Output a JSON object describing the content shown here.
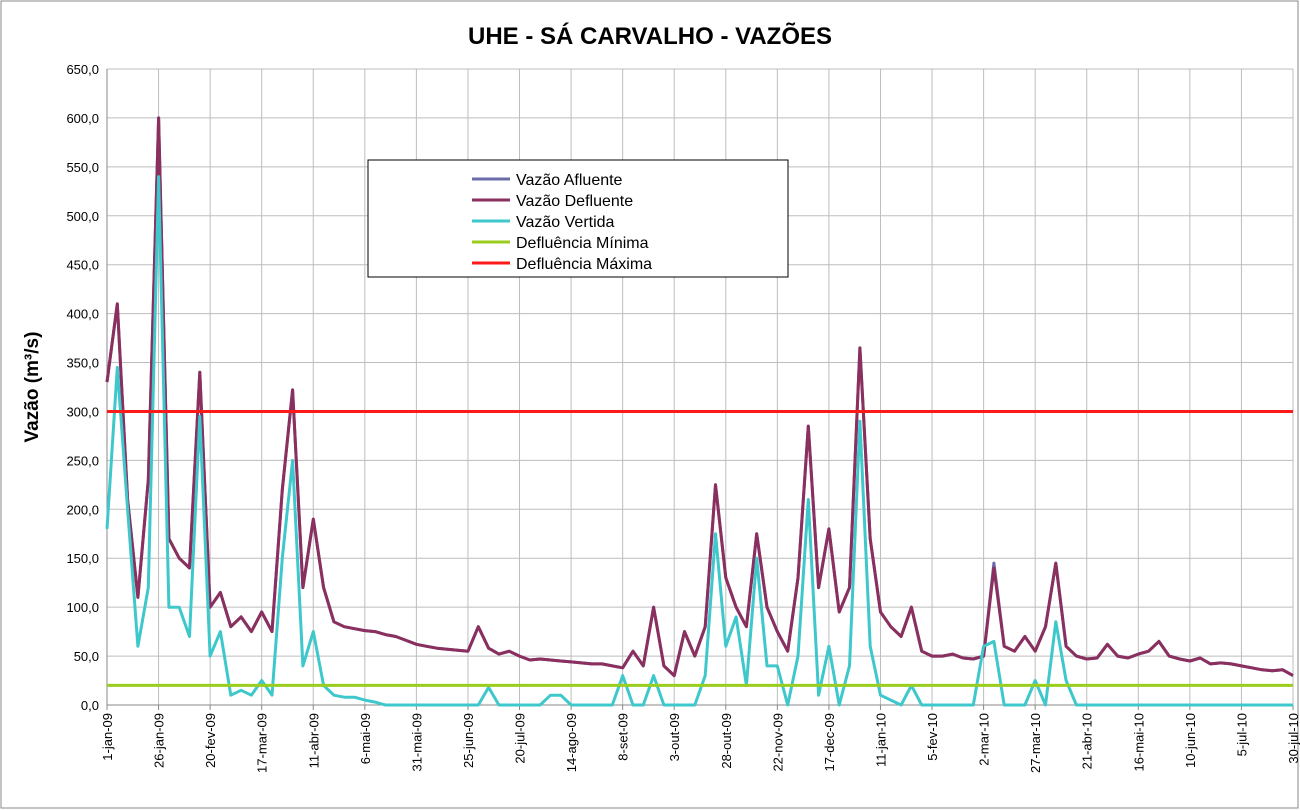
{
  "chart_data": {
    "type": "line",
    "title": "UHE - SÁ CARVALHO - VAZÕES",
    "y_label": "Vazão (m³/s)",
    "categories": [
      "1-jan-09",
      null,
      null,
      null,
      null,
      "26-jan-09",
      null,
      null,
      null,
      null,
      "20-fev-09",
      null,
      null,
      null,
      null,
      "17-mar-09",
      null,
      null,
      null,
      null,
      "11-abr-09",
      null,
      null,
      null,
      null,
      "6-mai-09",
      null,
      null,
      null,
      null,
      "31-mai-09",
      null,
      null,
      null,
      null,
      "25-jun-09",
      null,
      null,
      null,
      null,
      "20-jul-09",
      null,
      null,
      null,
      null,
      "14-ago-09",
      null,
      null,
      null,
      null,
      "8-set-09",
      null,
      null,
      null,
      null,
      "3-out-09",
      null,
      null,
      null,
      null,
      "28-out-09",
      null,
      null,
      null,
      null,
      "22-nov-09",
      null,
      null,
      null,
      null,
      "17-dec-09",
      null,
      null,
      null,
      null,
      "11-jan-10",
      null,
      null,
      null,
      null,
      "5-fev-10",
      null,
      null,
      null,
      null,
      "2-mar-10",
      null,
      null,
      null,
      null,
      "27-mar-10",
      null,
      null,
      null,
      null,
      "21-abr-10",
      null,
      null,
      null,
      null,
      "16-mai-10",
      null,
      null,
      null,
      null,
      "10-jun-10",
      null,
      null,
      null,
      null,
      "5-jul-10",
      null,
      null,
      null,
      null,
      "30-jul-10"
    ],
    "series": [
      {
        "name": "Vazão Afluente",
        "color": "#6b6baa",
        "values": [
          330,
          410,
          210,
          110,
          230,
          600,
          170,
          150,
          140,
          340,
          100,
          115,
          80,
          90,
          75,
          95,
          75,
          220,
          322,
          120,
          190,
          120,
          85,
          80,
          78,
          76,
          75,
          72,
          70,
          66,
          62,
          60,
          58,
          57,
          56,
          55,
          80,
          58,
          52,
          55,
          50,
          46,
          47,
          46,
          45,
          44,
          43,
          42,
          42,
          40,
          38,
          55,
          40,
          100,
          40,
          30,
          75,
          50,
          80,
          225,
          130,
          100,
          80,
          175,
          100,
          75,
          55,
          130,
          285,
          120,
          180,
          95,
          120,
          365,
          170,
          95,
          80,
          70,
          100,
          55,
          50,
          50,
          52,
          48,
          47,
          50,
          145,
          60,
          55,
          70,
          55,
          80,
          145,
          60,
          50,
          47,
          48,
          62,
          50,
          48,
          52,
          55,
          65,
          50,
          47,
          45,
          48,
          42,
          43,
          42,
          40,
          38,
          36,
          35,
          36,
          30
        ]
      },
      {
        "name": "Vazão Defluente",
        "color": "#8b2f5e",
        "values": [
          330,
          410,
          210,
          110,
          230,
          600,
          170,
          150,
          140,
          340,
          100,
          115,
          80,
          90,
          75,
          95,
          75,
          220,
          322,
          120,
          190,
          120,
          85,
          80,
          78,
          76,
          75,
          72,
          70,
          66,
          62,
          60,
          58,
          57,
          56,
          55,
          80,
          58,
          52,
          55,
          50,
          46,
          47,
          46,
          45,
          44,
          43,
          42,
          42,
          40,
          38,
          55,
          40,
          100,
          40,
          30,
          75,
          50,
          80,
          225,
          130,
          100,
          80,
          175,
          100,
          75,
          55,
          130,
          285,
          120,
          180,
          95,
          120,
          365,
          170,
          95,
          80,
          70,
          100,
          55,
          50,
          50,
          52,
          48,
          47,
          50,
          140,
          60,
          55,
          70,
          55,
          80,
          145,
          60,
          50,
          47,
          48,
          62,
          50,
          48,
          52,
          55,
          65,
          50,
          47,
          45,
          48,
          42,
          43,
          42,
          40,
          38,
          36,
          35,
          36,
          30
        ]
      },
      {
        "name": "Vazão Vertida",
        "color": "#3ec8cc",
        "values": [
          180,
          345,
          200,
          60,
          120,
          540,
          100,
          100,
          70,
          295,
          50,
          75,
          10,
          15,
          10,
          25,
          10,
          150,
          250,
          40,
          75,
          20,
          10,
          8,
          8,
          5,
          3,
          0,
          0,
          0,
          0,
          0,
          0,
          0,
          0,
          0,
          0,
          18,
          0,
          0,
          0,
          0,
          0,
          10,
          10,
          0,
          0,
          0,
          0,
          0,
          30,
          0,
          0,
          30,
          0,
          0,
          0,
          0,
          30,
          175,
          60,
          90,
          20,
          150,
          40,
          40,
          0,
          50,
          210,
          10,
          60,
          0,
          40,
          290,
          60,
          10,
          5,
          0,
          20,
          0,
          0,
          0,
          0,
          0,
          0,
          60,
          65,
          0,
          0,
          0,
          25,
          0,
          85,
          25,
          0,
          0,
          0,
          0,
          0,
          0,
          0,
          0,
          0,
          0,
          0,
          0,
          0,
          0,
          0,
          0,
          0,
          0,
          0,
          0,
          0,
          0
        ]
      }
    ],
    "reference_lines": [
      {
        "name": "Defluência Mínima",
        "color": "#9acd1e",
        "value": 20
      },
      {
        "name": "Defluência Máxima",
        "color": "#ff1a1a",
        "value": 300
      }
    ],
    "ylim": [
      0,
      650
    ],
    "yticks": [
      {
        "value": 0,
        "label": "0,0"
      },
      {
        "value": 50,
        "label": "50,0"
      },
      {
        "value": 100,
        "label": "100,0"
      },
      {
        "value": 150,
        "label": "150,0"
      },
      {
        "value": 200,
        "label": "200,0"
      },
      {
        "value": 250,
        "label": "250,0"
      },
      {
        "value": 300,
        "label": "300,0"
      },
      {
        "value": 350,
        "label": "350,0"
      },
      {
        "value": 400,
        "label": "400,0"
      },
      {
        "value": 450,
        "label": "450,0"
      },
      {
        "value": 500,
        "label": "500,0"
      },
      {
        "value": 550,
        "label": "550,0"
      },
      {
        "value": 600,
        "label": "600,0"
      },
      {
        "value": 650,
        "label": "650,0"
      }
    ],
    "grid": true
  }
}
